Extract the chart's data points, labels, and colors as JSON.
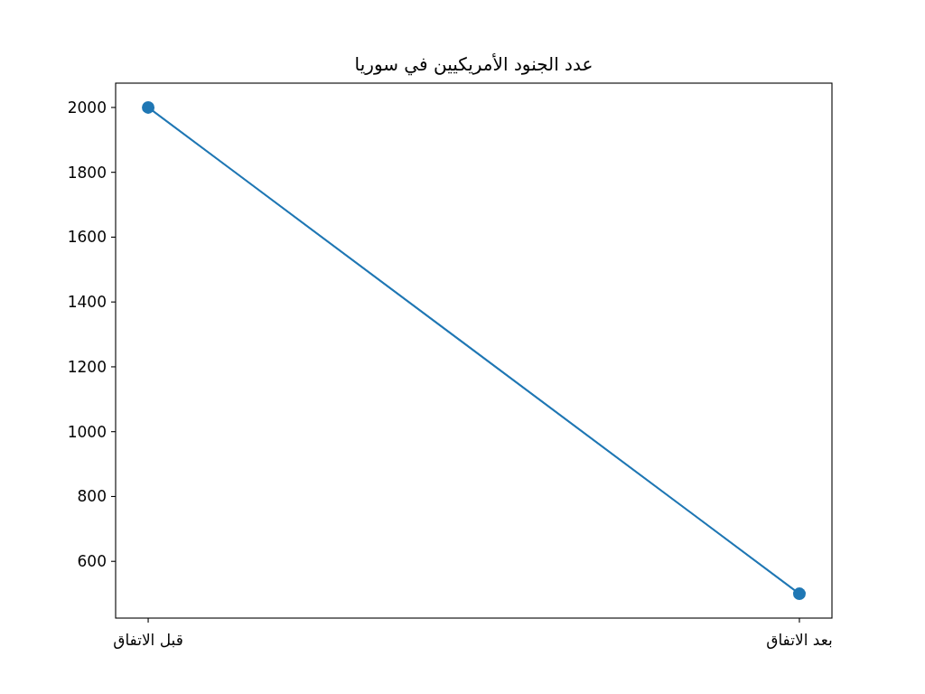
{
  "chart_data": {
    "type": "line",
    "title": "عدد الجنود الأمريكيين في سوريا",
    "categories": [
      "قبل الاتفاق",
      "بعد الاتفاق"
    ],
    "series": [
      {
        "color": "#1f77b4",
        "values": [
          2000,
          500
        ]
      }
    ],
    "ylim": [
      425,
      2075
    ],
    "yticks": [
      600,
      800,
      1000,
      1200,
      1400,
      1600,
      1800,
      2000
    ],
    "marker": "circle",
    "line_style": "solid",
    "grid": false
  }
}
